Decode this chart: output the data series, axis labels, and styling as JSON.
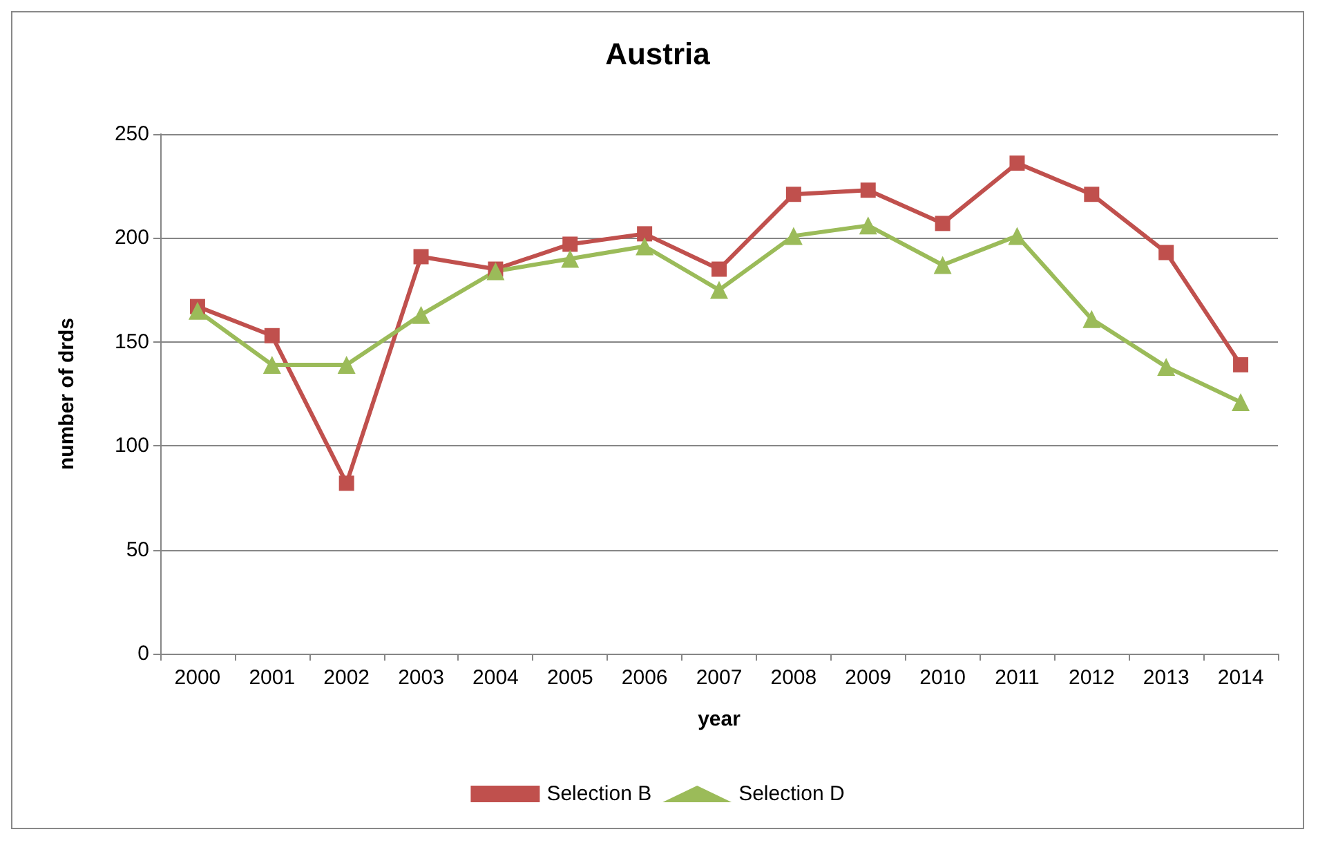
{
  "chart_data": {
    "type": "line",
    "title": "Austria",
    "xlabel": "year",
    "ylabel": "number of drds",
    "categories": [
      "2000",
      "2001",
      "2002",
      "2003",
      "2004",
      "2005",
      "2006",
      "2007",
      "2008",
      "2009",
      "2010",
      "2011",
      "2012",
      "2013",
      "2014"
    ],
    "series": [
      {
        "name": "Selection B",
        "color": "#c0504d",
        "marker": "square",
        "values": [
          167,
          153,
          82,
          191,
          185,
          197,
          202,
          185,
          221,
          223,
          207,
          236,
          221,
          193,
          139
        ]
      },
      {
        "name": "Selection D",
        "color": "#9bbb59",
        "marker": "triangle",
        "values": [
          165,
          139,
          139,
          163,
          184,
          190,
          196,
          175,
          201,
          206,
          187,
          201,
          161,
          138,
          121
        ]
      }
    ],
    "ylim": [
      0,
      250
    ],
    "yticks": [
      0,
      50,
      100,
      150,
      200,
      250
    ],
    "grid": "y",
    "legend": "bottom",
    "line_style": "solid"
  }
}
